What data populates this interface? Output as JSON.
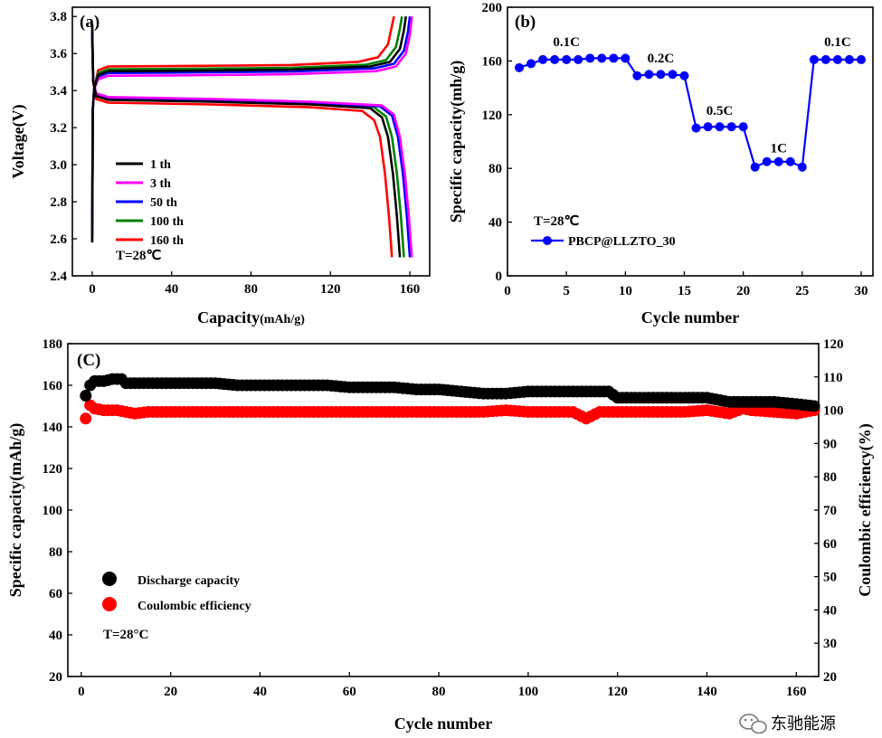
{
  "watermark": {
    "text": "东驰能源",
    "icon": "wechat-icon"
  },
  "chart_data": [
    {
      "id": "a",
      "type": "line",
      "panel_label": "(a)",
      "xlabel": "Capacity",
      "xlabel_unit": "(mAh/g)",
      "ylabel": "Voltage(V)",
      "xlim": [
        -10,
        170
      ],
      "ylim": [
        2.4,
        3.85
      ],
      "xticks": [
        0,
        40,
        80,
        120,
        160
      ],
      "yticks": [
        2.4,
        2.6,
        2.8,
        3.0,
        3.2,
        3.4,
        3.6,
        3.8
      ],
      "ytick_labels": [
        "2.4",
        "2.6",
        "2.8",
        "3.0",
        "3.2",
        "3.4",
        "3.6",
        "3.8"
      ],
      "annotation": "T=28℃",
      "series": [
        {
          "name": "1 th",
          "color": "#000000",
          "charge_plateau": 3.505,
          "discharge_plateau": 3.345,
          "charge_end": 158,
          "discharge_end": 155
        },
        {
          "name": "3 th",
          "color": "#ff00ff",
          "charge_plateau": 3.48,
          "discharge_plateau": 3.36,
          "charge_end": 161,
          "discharge_end": 161
        },
        {
          "name": "50 th",
          "color": "#0000ff",
          "charge_plateau": 3.495,
          "discharge_plateau": 3.355,
          "charge_end": 160,
          "discharge_end": 160
        },
        {
          "name": "100 th",
          "color": "#008000",
          "charge_plateau": 3.515,
          "discharge_plateau": 3.35,
          "charge_end": 156,
          "discharge_end": 157
        },
        {
          "name": "160 th",
          "color": "#ff0000",
          "charge_plateau": 3.53,
          "discharge_plateau": 3.33,
          "charge_end": 152,
          "discharge_end": 151
        }
      ]
    },
    {
      "id": "b",
      "type": "line",
      "panel_label": "(b)",
      "xlabel": "Cycle number",
      "ylabel": "Specific capacity(mh/g)",
      "xlim": [
        0,
        31
      ],
      "ylim": [
        0,
        200
      ],
      "xticks": [
        0,
        5,
        10,
        15,
        20,
        25,
        30
      ],
      "yticks": [
        0,
        40,
        80,
        120,
        160,
        200
      ],
      "annotation": "T=28℃",
      "series": [
        {
          "name": "PBCP@LLZTO_30",
          "color": "#0000ff",
          "x": [
            1,
            2,
            3,
            4,
            5,
            6,
            7,
            8,
            9,
            10,
            11,
            12,
            13,
            14,
            15,
            16,
            17,
            18,
            19,
            20,
            21,
            22,
            23,
            24,
            25,
            26,
            27,
            28,
            29,
            30
          ],
          "y": [
            155,
            158,
            161,
            161,
            161,
            161,
            162,
            162,
            162,
            162,
            149,
            150,
            150,
            150,
            149,
            110,
            111,
            111,
            111,
            111,
            81,
            85,
            85,
            85,
            81,
            161,
            161,
            161,
            161,
            161
          ]
        }
      ],
      "rate_labels": [
        {
          "text": "0.1C",
          "x": 5,
          "y": 171
        },
        {
          "text": "0.2C",
          "x": 13,
          "y": 159
        },
        {
          "text": "0.5C",
          "x": 18,
          "y": 120
        },
        {
          "text": "1C",
          "x": 23,
          "y": 92
        },
        {
          "text": "0.1C",
          "x": 28,
          "y": 171
        }
      ]
    },
    {
      "id": "c",
      "type": "scatter",
      "panel_label": "(C)",
      "xlabel": "Cycle number",
      "ylabel": "Specific capacity(mAh/g)",
      "ylabel_right": "Coulombic efficiency(%)",
      "xlim": [
        -3,
        165
      ],
      "ylim": [
        20,
        180
      ],
      "ylim_right": [
        20,
        120
      ],
      "xticks": [
        0,
        20,
        40,
        60,
        80,
        100,
        120,
        140
      ],
      "xtick_labels": [
        "0",
        "20",
        "40",
        "60",
        "80",
        "100",
        "120",
        "140"
      ],
      "xtick_last": {
        "value": 160,
        "label": "160"
      },
      "yticks": [
        20,
        40,
        60,
        80,
        100,
        120,
        140,
        160,
        180
      ],
      "yticks_right": [
        20,
        30,
        40,
        50,
        60,
        70,
        80,
        90,
        100,
        110,
        120
      ],
      "annotation": "T=28°C",
      "series": [
        {
          "name": "Discharge capacity",
          "color": "#000000",
          "axis": "left",
          "points": [
            [
              1,
              155
            ],
            [
              2,
              160
            ],
            [
              3,
              162
            ],
            [
              5,
              162
            ],
            [
              7,
              163
            ],
            [
              9,
              163
            ],
            [
              10,
              161
            ],
            [
              12,
              161
            ],
            [
              15,
              161
            ],
            [
              20,
              161
            ],
            [
              25,
              161
            ],
            [
              30,
              161
            ],
            [
              35,
              160
            ],
            [
              40,
              160
            ],
            [
              45,
              160
            ],
            [
              50,
              160
            ],
            [
              55,
              160
            ],
            [
              60,
              159
            ],
            [
              65,
              159
            ],
            [
              70,
              159
            ],
            [
              75,
              158
            ],
            [
              80,
              158
            ],
            [
              85,
              157
            ],
            [
              90,
              156
            ],
            [
              95,
              156
            ],
            [
              100,
              157
            ],
            [
              105,
              157
            ],
            [
              110,
              157
            ],
            [
              115,
              157
            ],
            [
              118,
              157
            ],
            [
              120,
              154
            ],
            [
              125,
              154
            ],
            [
              130,
              154
            ],
            [
              135,
              154
            ],
            [
              140,
              154
            ],
            [
              145,
              152
            ],
            [
              150,
              152
            ],
            [
              155,
              152
            ],
            [
              160,
              151
            ],
            [
              164,
              150
            ]
          ]
        },
        {
          "name": "Coulombic efficiency",
          "color": "#ff0000",
          "axis": "right",
          "points": [
            [
              1,
              97.5
            ],
            [
              2,
              101.5
            ],
            [
              3,
              100.5
            ],
            [
              5,
              100
            ],
            [
              8,
              100
            ],
            [
              10,
              99.5
            ],
            [
              12,
              99
            ],
            [
              15,
              99.5
            ],
            [
              20,
              99.5
            ],
            [
              25,
              99.5
            ],
            [
              30,
              99.5
            ],
            [
              35,
              99.5
            ],
            [
              40,
              99.5
            ],
            [
              45,
              99.5
            ],
            [
              50,
              99.5
            ],
            [
              55,
              99.5
            ],
            [
              60,
              99.5
            ],
            [
              65,
              99.5
            ],
            [
              70,
              99.5
            ],
            [
              75,
              99.5
            ],
            [
              80,
              99.5
            ],
            [
              85,
              99.5
            ],
            [
              90,
              99.5
            ],
            [
              95,
              100
            ],
            [
              100,
              99.5
            ],
            [
              105,
              99.5
            ],
            [
              110,
              99.5
            ],
            [
              113,
              97.5
            ],
            [
              116,
              99.5
            ],
            [
              120,
              99.5
            ],
            [
              125,
              99.5
            ],
            [
              130,
              99.5
            ],
            [
              135,
              99.5
            ],
            [
              140,
              100
            ],
            [
              145,
              99
            ],
            [
              148,
              100.5
            ],
            [
              150,
              100
            ],
            [
              155,
              99.5
            ],
            [
              160,
              99
            ],
            [
              164,
              100
            ]
          ]
        }
      ]
    }
  ]
}
